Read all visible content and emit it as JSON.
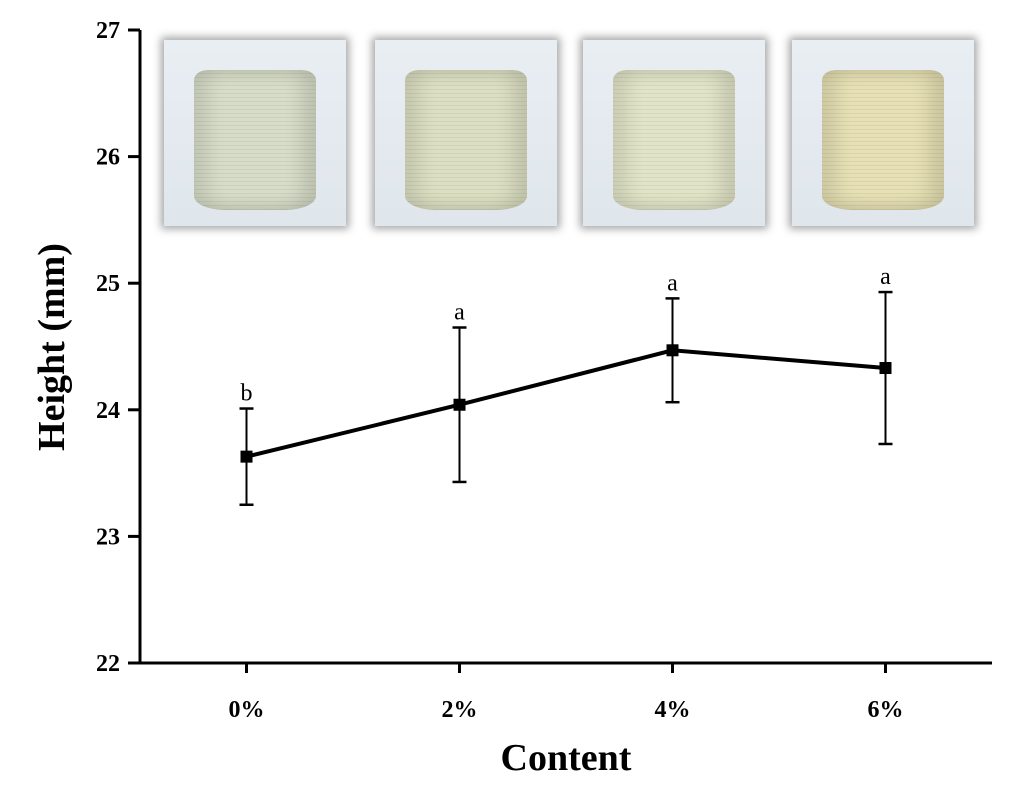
{
  "chart_data": {
    "type": "line",
    "title": "",
    "xlabel": "Content",
    "ylabel": "Height (mm)",
    "categories": [
      "0%",
      "2%",
      "4%",
      "6%"
    ],
    "ylim": [
      22,
      27
    ],
    "yticks": [
      "22",
      "23",
      "24",
      "25",
      "26",
      "27"
    ],
    "series": [
      {
        "name": "Height",
        "values": [
          23.63,
          24.04,
          24.47,
          24.33
        ],
        "errors": [
          0.38,
          0.61,
          0.41,
          0.6
        ],
        "letters": [
          "b",
          "a",
          "a",
          "a"
        ]
      }
    ],
    "grid": false,
    "legend": "none",
    "line_color": "#000000",
    "photo_colors": [
      "#d7ddc8",
      "#dcdfc2",
      "#e2e4c8",
      "#e6e0b4"
    ]
  }
}
